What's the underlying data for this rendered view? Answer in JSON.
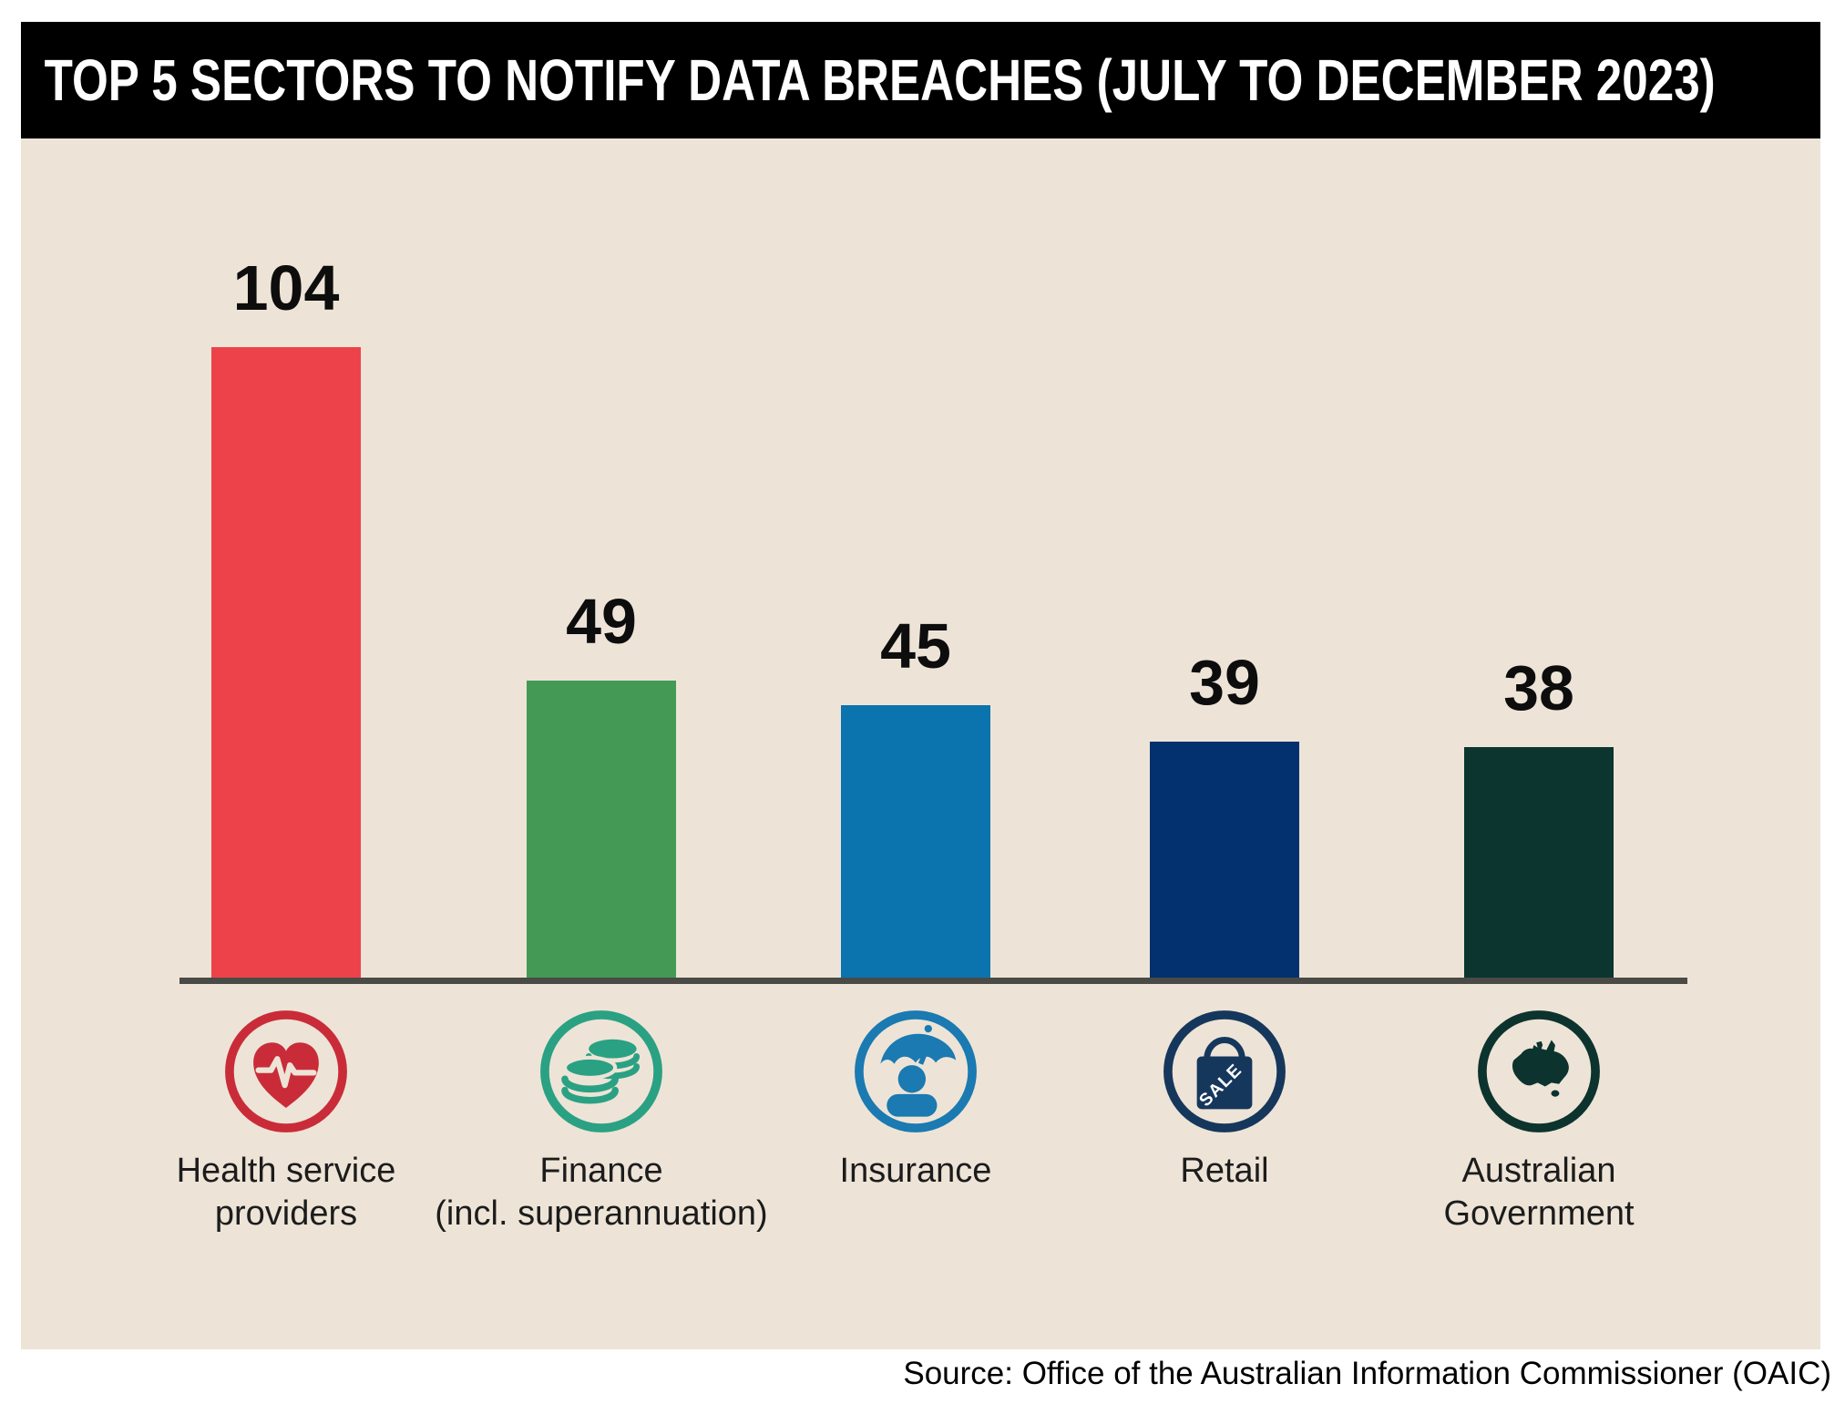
{
  "header": {
    "title": "TOP 5 SECTORS TO NOTIFY DATA BREACHES (JULY TO DECEMBER 2023)"
  },
  "source": {
    "text": "Source: Office of the Australian Information Commissioner (OAIC)"
  },
  "palette": {
    "page_background": "#ffffff",
    "header_background": "#000000",
    "header_text": "#ffffff",
    "panel_background": "#ede4d7",
    "axis_line": "#4a4a46",
    "value_text": "#0d0d0d",
    "label_text": "#1c1c1c"
  },
  "chart_data": {
    "type": "bar",
    "title": "TOP 5 SECTORS TO NOTIFY DATA BREACHES (JULY TO DECEMBER 2023)",
    "categories": [
      "Health service providers",
      "Finance (incl. superannuation)",
      "Insurance",
      "Retail",
      "Australian Government"
    ],
    "values": [
      104,
      49,
      45,
      39,
      38
    ],
    "xlabel": "",
    "ylabel": "",
    "ylim": [
      0,
      110
    ],
    "grid": false,
    "legend": "none",
    "value_labels_shown": true,
    "source": "Source: Office of the Australian Information Commissioner (OAIC)",
    "bars": [
      {
        "value": 104,
        "value_label": "104",
        "label_lines": [
          "Health service",
          "providers"
        ],
        "bar_color": "#ee424b",
        "icon": "health-icon",
        "icon_color": "#c92c38"
      },
      {
        "value": 49,
        "value_label": "49",
        "label_lines": [
          "Finance",
          "(incl. superannuation)"
        ],
        "bar_color": "#449a55",
        "icon": "finance-coins-icon",
        "icon_color": "#2aa183"
      },
      {
        "value": 45,
        "value_label": "45",
        "label_lines": [
          "Insurance"
        ],
        "bar_color": "#0b73ae",
        "icon": "insurance-umbrella-person-icon",
        "icon_color": "#1a7ab1"
      },
      {
        "value": 39,
        "value_label": "39",
        "label_lines": [
          "Retail"
        ],
        "bar_color": "#03306e",
        "icon": "retail-sale-bag-icon",
        "icon_color": "#16375c"
      },
      {
        "value": 38,
        "value_label": "38",
        "label_lines": [
          "Australian",
          "Government"
        ],
        "bar_color": "#0c352f",
        "icon": "australia-map-icon",
        "icon_color": "#0d332e"
      }
    ]
  }
}
